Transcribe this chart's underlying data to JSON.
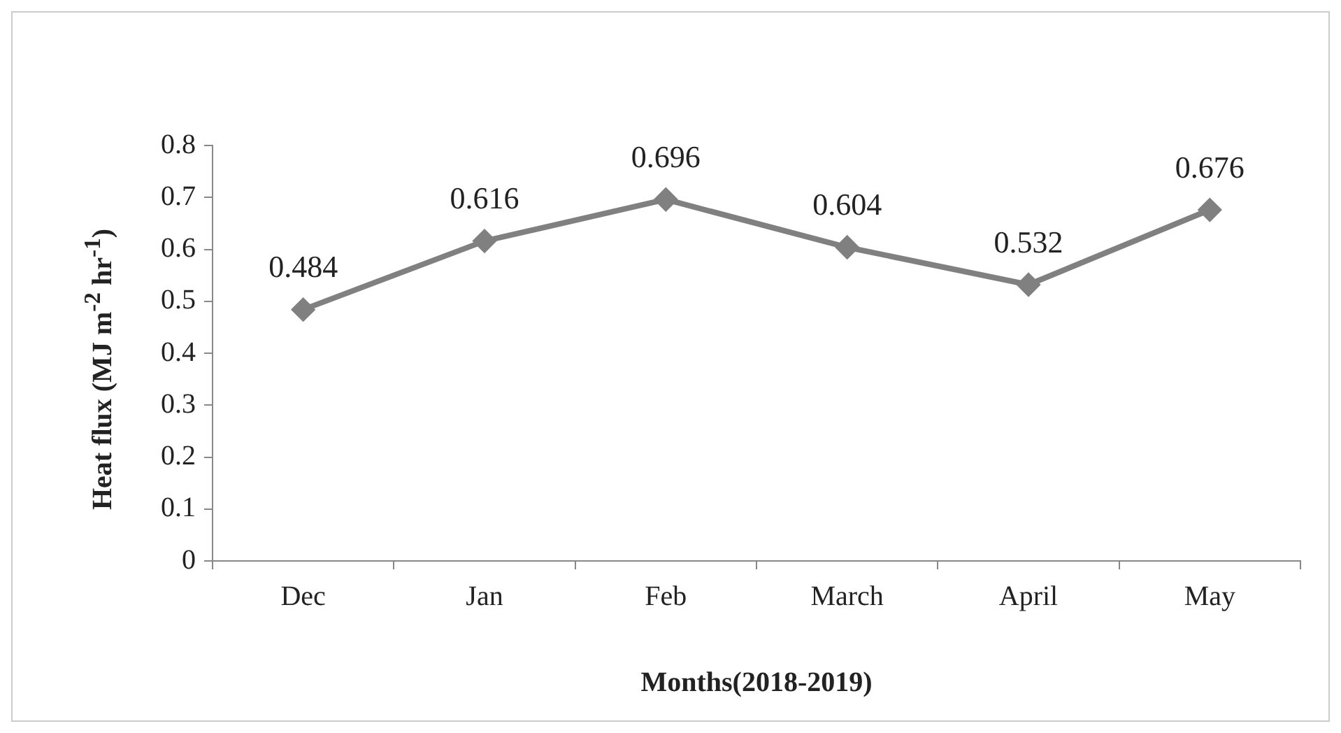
{
  "chart_data": {
    "type": "line",
    "xlabel": "Months(2018-2019)",
    "ylabel": "Heat flux  (MJ m$^{-2}$ hr$^{-1}$)",
    "categories": [
      "Dec",
      "Jan",
      "Feb",
      "March",
      "April",
      "May"
    ],
    "series": [
      {
        "color": "#808080",
        "values": [
          0.484,
          0.616,
          0.696,
          0.604,
          0.532,
          0.676
        ]
      }
    ],
    "ylim": [
      0,
      0.8
    ],
    "yticks": [
      0,
      0.1,
      0.2,
      0.3,
      0.4,
      0.5,
      0.6,
      0.7,
      0.8
    ],
    "grid": false,
    "legend": false,
    "marker": "diamond",
    "line_style": "solid",
    "data_labels": true
  }
}
